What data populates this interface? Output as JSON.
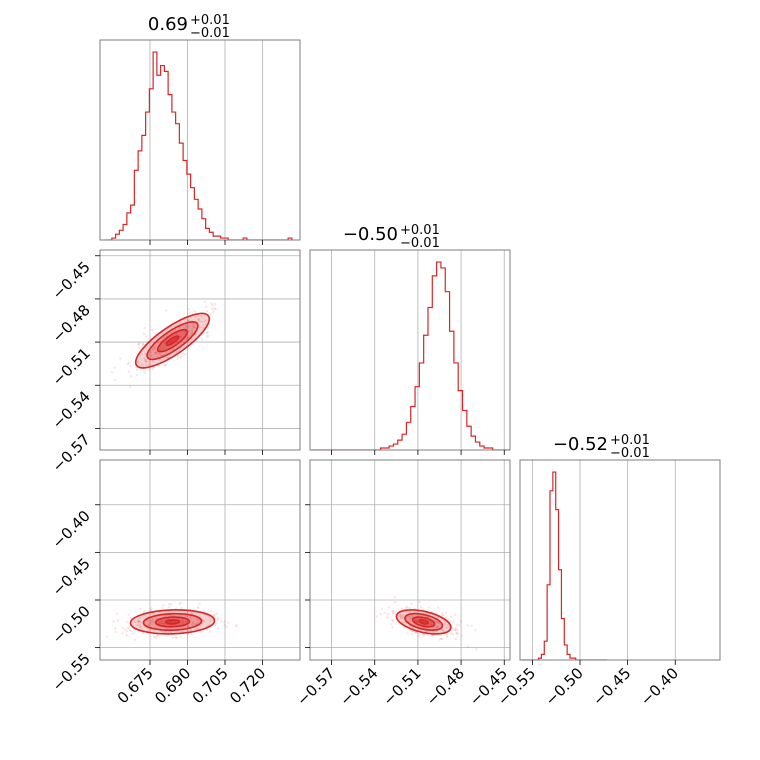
{
  "chart_data": {
    "type": "corner",
    "color": "#d62728",
    "parameters": [
      {
        "title_value": "0.69",
        "title_plus": "+0.01",
        "title_minus": "−0.01",
        "range": [
          0.655,
          0.735
        ],
        "ticks": [
          0.675,
          0.69,
          0.705,
          0.72
        ],
        "tick_labels": [
          "0.675",
          "0.690",
          "0.705",
          "0.720"
        ],
        "hist": {
          "bins": [
            0.6575,
            0.659,
            0.6605,
            0.662,
            0.6635,
            0.665,
            0.6665,
            0.668,
            0.6695,
            0.671,
            0.6725,
            0.674,
            0.6755,
            0.677,
            0.6785,
            0.68,
            0.6815,
            0.683,
            0.6845,
            0.686,
            0.6875,
            0.689,
            0.6905,
            0.692,
            0.6935,
            0.695,
            0.6965,
            0.698,
            0.6995,
            0.701,
            0.7025,
            0.704,
            0.7055,
            0.707,
            0.7085,
            0.71,
            0.7115,
            0.713,
            0.7145,
            0.716,
            0.7175,
            0.719,
            0.7205,
            0.722,
            0.7235,
            0.725,
            0.7265,
            0.728,
            0.7295,
            0.731
          ],
          "counts": [
            0,
            0,
            1,
            3,
            5,
            8,
            14,
            18,
            36,
            46,
            54,
            66,
            78,
            97,
            85,
            90,
            87,
            75,
            66,
            60,
            50,
            41,
            34,
            27,
            21,
            16,
            11,
            6,
            4,
            2,
            2,
            1,
            1,
            0,
            0,
            0,
            0,
            1,
            0,
            0,
            0,
            0,
            0,
            0,
            0,
            0,
            0,
            0,
            0,
            1
          ]
        }
      },
      {
        "title_value": "−0.50",
        "title_plus": "+0.01",
        "title_minus": "−0.01",
        "range": [
          -0.585,
          -0.446
        ],
        "ticks": [
          -0.57,
          -0.54,
          -0.51,
          -0.48,
          -0.45
        ],
        "tick_labels": [
          "−0.57",
          "−0.54",
          "−0.51",
          "−0.48",
          "−0.45"
        ],
        "hist": {
          "bins": [
            -0.5825,
            -0.5795,
            -0.5765,
            -0.5735,
            -0.5705,
            -0.5675,
            -0.5645,
            -0.5615,
            -0.5585,
            -0.5555,
            -0.5525,
            -0.5495,
            -0.5465,
            -0.5435,
            -0.5405,
            -0.5375,
            -0.5345,
            -0.5315,
            -0.5285,
            -0.5255,
            -0.5225,
            -0.5195,
            -0.5165,
            -0.5135,
            -0.5105,
            -0.5075,
            -0.5045,
            -0.5015,
            -0.4985,
            -0.4955,
            -0.4925,
            -0.4895,
            -0.4865,
            -0.4835,
            -0.4805,
            -0.4775,
            -0.4745,
            -0.4715,
            -0.4685,
            -0.4655,
            -0.4625,
            -0.4595,
            -0.4565,
            -0.4535,
            -0.4505,
            -0.4475
          ],
          "counts": [
            0,
            0,
            0,
            0,
            0,
            0,
            0,
            0,
            0,
            0,
            0,
            0,
            0,
            0,
            0,
            0,
            1,
            1,
            2,
            3,
            5,
            8,
            14,
            22,
            32,
            44,
            58,
            72,
            88,
            95,
            92,
            80,
            60,
            44,
            30,
            20,
            12,
            7,
            4,
            2,
            1,
            1,
            0,
            0,
            0,
            0
          ]
        }
      },
      {
        "title_value": "−0.52",
        "title_plus": "+0.01",
        "title_minus": "−0.01",
        "range": [
          -0.563,
          -0.353
        ],
        "ticks": [
          -0.55,
          -0.5,
          -0.45,
          -0.4
        ],
        "tick_labels": [
          "−0.55",
          "−0.50",
          "−0.45",
          "−0.40"
        ],
        "hist": {
          "bins": [
            -0.56,
            -0.557,
            -0.554,
            -0.551,
            -0.548,
            -0.545,
            -0.542,
            -0.539,
            -0.536,
            -0.533,
            -0.53,
            -0.527,
            -0.524,
            -0.521,
            -0.518,
            -0.515,
            -0.512,
            -0.509,
            -0.506,
            -0.503,
            -0.5,
            -0.497,
            -0.494,
            -0.491,
            -0.488,
            -0.485,
            -0.482,
            -0.479,
            -0.476,
            -0.473
          ],
          "counts": [
            0,
            0,
            0,
            0,
            0,
            0,
            1,
            3,
            10,
            40,
            90,
            100,
            80,
            48,
            22,
            8,
            3,
            1,
            1,
            0,
            0,
            0,
            0,
            0,
            0,
            0,
            0,
            0,
            0,
            0
          ]
        }
      }
    ],
    "pairs": [
      {
        "x": 0,
        "y": 1,
        "center": [
          0.684,
          -0.509
        ],
        "spread": [
          0.007,
          0.009
        ],
        "rho": 0.8
      },
      {
        "x": 0,
        "y": 2,
        "center": [
          0.684,
          -0.523
        ],
        "spread": [
          0.008,
          0.006
        ],
        "rho": 0.1
      },
      {
        "x": 1,
        "y": 2,
        "center": [
          -0.506,
          -0.523
        ],
        "spread": [
          0.009,
          0.006
        ],
        "rho": -0.45
      }
    ],
    "grid": true,
    "type_detail": "corner plot: 1D histograms on the diagonal, 2D density contours below"
  }
}
